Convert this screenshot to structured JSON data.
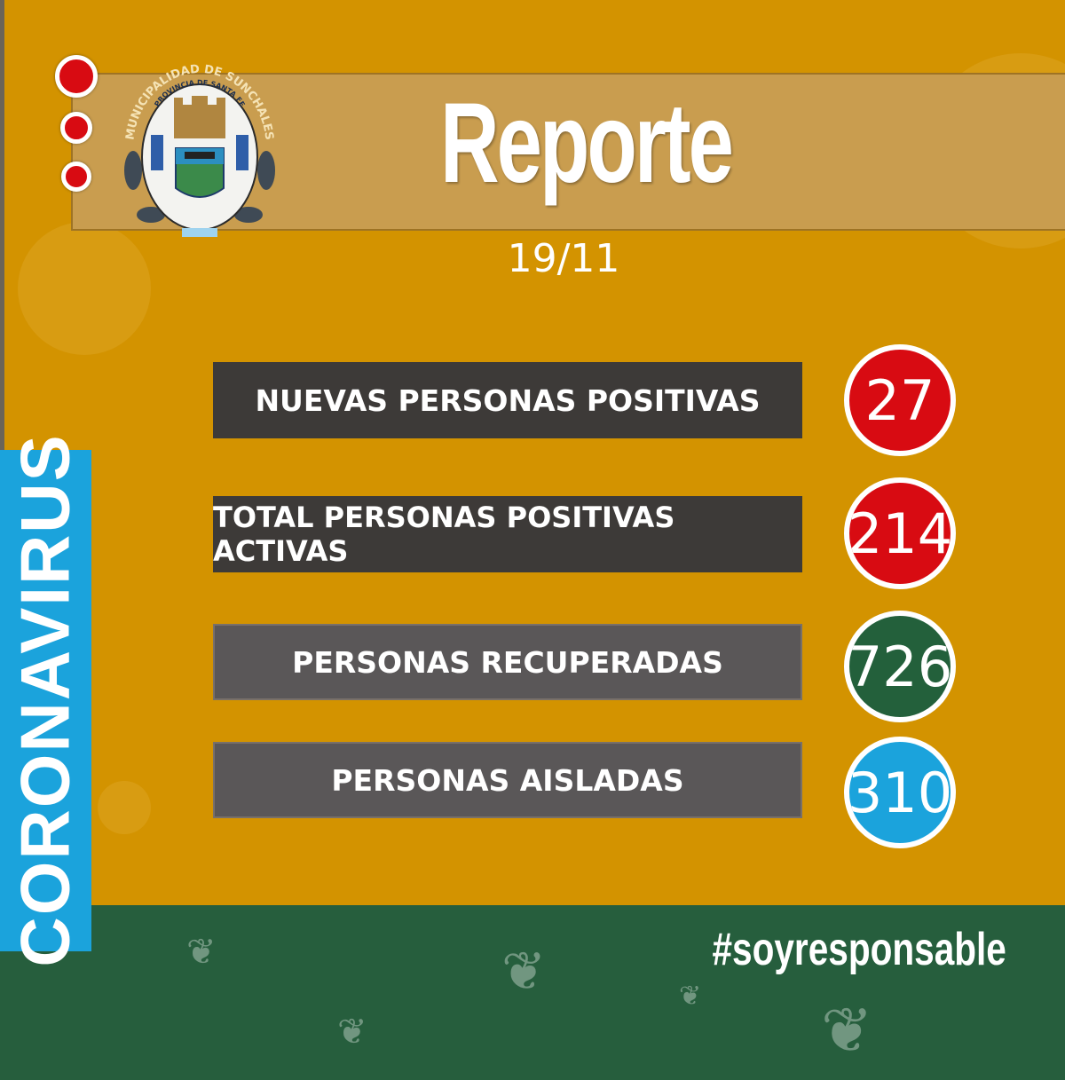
{
  "logo": {
    "text_outer": "MUNICIPALIDAD DE SUNCHALES",
    "text_inner": "PROVINCIA DE SANTA FE"
  },
  "header": {
    "title": "Reporte",
    "date": "19/11"
  },
  "side_label": "CORONAVIRUS",
  "stats": [
    {
      "label": "NUEVAS PERSONAS POSITIVAS",
      "value": "27",
      "color": "#d80b12"
    },
    {
      "label": "TOTAL PERSONAS POSITIVAS ACTIVAS",
      "value": "214",
      "color": "#d80b12"
    },
    {
      "label": "PERSONAS RECUPERADAS",
      "value": "726",
      "color": "#23603b"
    },
    {
      "label": "PERSONAS AISLADAS",
      "value": "310",
      "color": "#1ba3dc"
    }
  ],
  "footer": {
    "hashtag": "#soyresponsable"
  },
  "colors": {
    "background": "#d39300",
    "footer": "#265e3d",
    "side": "#1ba3dc"
  }
}
